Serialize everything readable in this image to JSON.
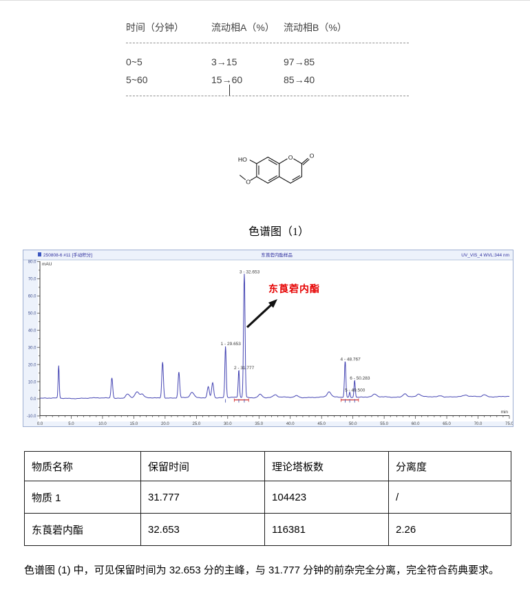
{
  "gradient_table": {
    "headers": [
      "时间（分钟）",
      "流动相A（%）",
      "流动相B（%）"
    ],
    "rows": [
      [
        "0~5",
        "3→15",
        "97→85"
      ],
      [
        "5~60",
        "15→60",
        "85→40"
      ]
    ]
  },
  "molecule": {
    "hydroxyl_label": "HO",
    "methoxy_o_label": "O",
    "ring_o_label": "O",
    "carbonyl_o_label": "O"
  },
  "figure_title": "色谱图（1）",
  "chromatogram": {
    "header_left": "250808-6 #11 [手动积分]",
    "header_center": "东莨菪内酯样品",
    "header_right": "UV_VIS_4 WVL:344 nm",
    "y_axis_unit": "mAU",
    "x_axis_unit": "min",
    "peak_annotation": "东莨菪内酯",
    "curve_color": "#4343b2",
    "annotation_color": "#e60000",
    "box_background": "#edf2fb"
  },
  "chart_data": {
    "type": "line",
    "title": "色谱图（1）",
    "xlabel": "min",
    "ylabel": "mAU",
    "xlim": [
      0,
      75
    ],
    "ylim": [
      -10,
      80
    ],
    "x_ticks": [
      0,
      5,
      10,
      15,
      20,
      25,
      30,
      35,
      40,
      45,
      50,
      55,
      60,
      65,
      70,
      75
    ],
    "y_ticks": [
      -10,
      0,
      10,
      20,
      30,
      40,
      50,
      60,
      70,
      80
    ],
    "labeled_peaks": [
      {
        "n": 1,
        "rt": 29.653,
        "height_mau": 30,
        "label": "1 - 29.653"
      },
      {
        "n": 2,
        "rt": 31.777,
        "height_mau": 16,
        "label": "2 - 31.777"
      },
      {
        "n": 3,
        "rt": 32.653,
        "height_mau": 72,
        "label": "3 - 32.653"
      },
      {
        "n": 4,
        "rt": 48.767,
        "height_mau": 21,
        "label": "4 - 48.767"
      },
      {
        "n": 5,
        "rt": 49.5,
        "height_mau": 3,
        "label": "5 - 49.500"
      },
      {
        "n": 6,
        "rt": 50.283,
        "height_mau": 10,
        "label": "6 - 50.283"
      }
    ],
    "minor_peaks": [
      [
        3.0,
        19
      ],
      [
        11.5,
        12
      ],
      [
        14.0,
        2.5
      ],
      [
        15.5,
        3.5
      ],
      [
        16.3,
        2
      ],
      [
        19.6,
        21
      ],
      [
        22.2,
        15
      ],
      [
        24.3,
        3
      ],
      [
        26.9,
        6.5
      ],
      [
        27.6,
        9
      ],
      [
        35.2,
        2
      ],
      [
        37.6,
        1.5
      ],
      [
        41.0,
        1.0
      ],
      [
        46.2,
        3
      ],
      [
        53.5,
        1.5
      ],
      [
        58.3,
        2.0
      ],
      [
        60.5,
        1.5
      ],
      [
        64.0,
        0.8
      ],
      [
        68.0,
        0.8
      ],
      [
        71.0,
        1.2
      ]
    ]
  },
  "results_table": {
    "headers": [
      "物质名称",
      "保留时间",
      "理论塔板数",
      "分离度"
    ],
    "rows": [
      [
        "物质 1",
        "31.777",
        "104423",
        "/"
      ],
      [
        "东莨菪内酯",
        "32.653",
        "116381",
        "2.26"
      ]
    ]
  },
  "footer_text": "色谱图 (1) 中，可见保留时间为 32.653 分的主峰，与 31.777 分钟的前杂完全分离，完全符合药典要求。"
}
